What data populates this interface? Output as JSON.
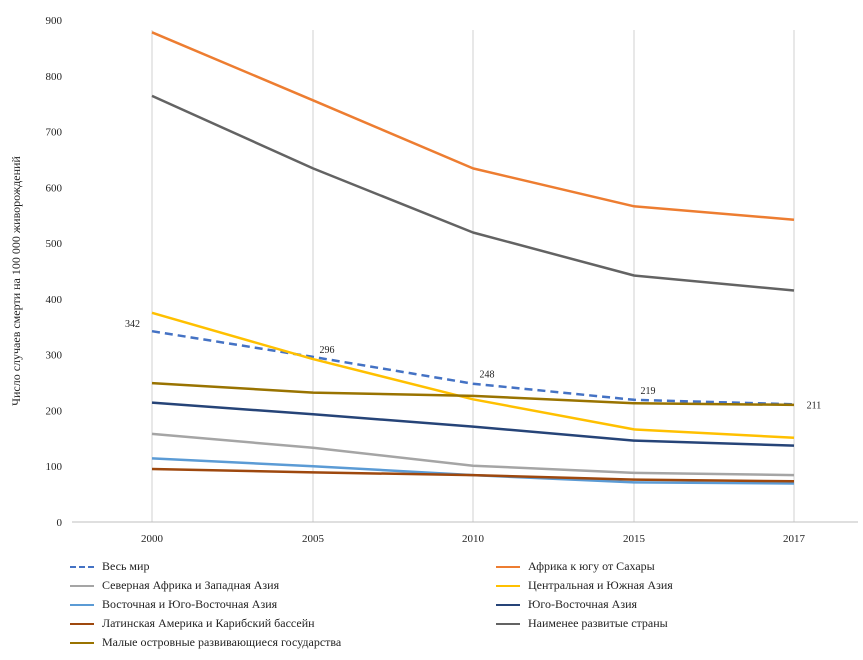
{
  "chart_data": {
    "type": "line",
    "title": "",
    "xlabel": "",
    "ylabel": "Число случаев смерти на 100 000 живорождений",
    "categories": [
      "2000",
      "2005",
      "2010",
      "2015",
      "2017"
    ],
    "ylim": [
      0,
      900
    ],
    "yticks": [
      0,
      100,
      200,
      300,
      400,
      500,
      600,
      700,
      800,
      900
    ],
    "grid": "vertical",
    "legend_position": "bottom",
    "series": [
      {
        "name": "Весь мир",
        "values": [
          342,
          296,
          248,
          219,
          211
        ],
        "color": "#4472C4",
        "dashed": true,
        "show_labels": true
      },
      {
        "name": "Африка к югу от Сахары",
        "values": [
          878,
          756,
          634,
          566,
          542
        ],
        "color": "#ED7D31"
      },
      {
        "name": "Северная Африка и Западная Азия",
        "values": [
          158,
          133,
          101,
          88,
          84
        ],
        "color": "#A5A5A5"
      },
      {
        "name": "Центральная и Южная Азия",
        "values": [
          375,
          292,
          220,
          166,
          151
        ],
        "color": "#FFC000"
      },
      {
        "name": "Восточная и Юго-Восточная Азия",
        "values": [
          114,
          100,
          84,
          71,
          69
        ],
        "color": "#5B9BD5"
      },
      {
        "name": "Юго-Восточная Азия",
        "values": [
          214,
          193,
          171,
          146,
          137
        ],
        "color": "#264478"
      },
      {
        "name": "Латинская Америка и Карибский бассейн",
        "values": [
          95,
          89,
          84,
          76,
          73
        ],
        "color": "#9E480E"
      },
      {
        "name": "Наименее развитые страны",
        "values": [
          764,
          634,
          519,
          442,
          415
        ],
        "color": "#636363"
      },
      {
        "name": "Малые островные развивающиеся государства",
        "values": [
          249,
          232,
          226,
          213,
          210
        ],
        "color": "#997300"
      }
    ]
  }
}
